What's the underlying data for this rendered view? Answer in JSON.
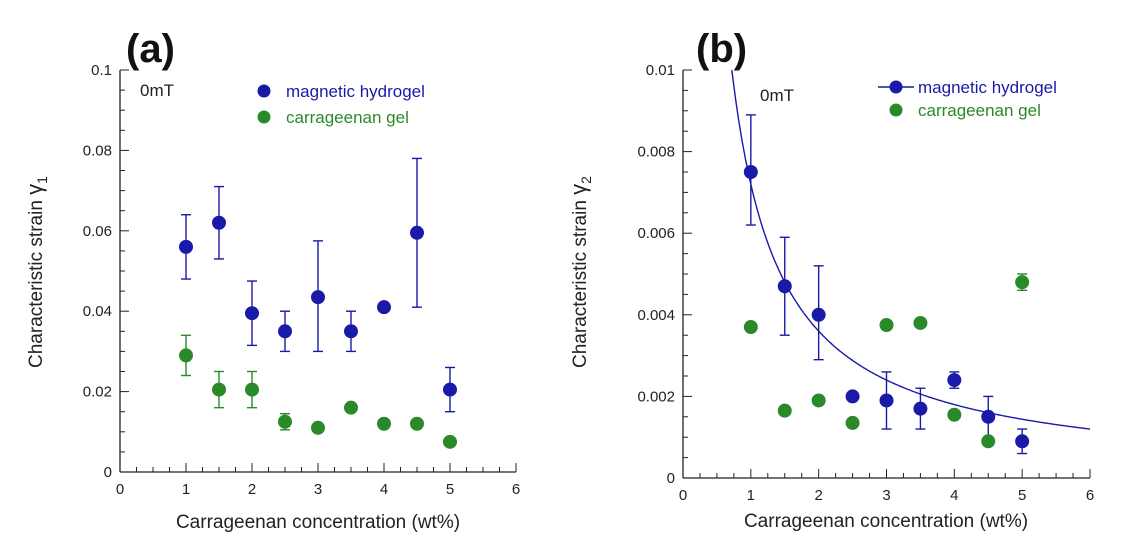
{
  "chart_data": [
    {
      "type": "scatter",
      "panel_label": "(a)",
      "annotation": "0mT",
      "xlabel": "Carrageenan concentration (wt%)",
      "ylabel_main": "Characteristic strain ",
      "ylabel_symbol": "γ",
      "ylabel_sub": "1",
      "xlim": [
        0,
        6
      ],
      "ylim": [
        0,
        0.1
      ],
      "xticks": [
        0,
        1,
        2,
        3,
        4,
        5,
        6
      ],
      "xtick_labels": [
        "0",
        "1",
        "2",
        "3",
        "4",
        "5",
        "6"
      ],
      "yticks": [
        0,
        0.02,
        0.04,
        0.06,
        0.08,
        0.1
      ],
      "ytick_labels": [
        "0",
        "0.02",
        "0.04",
        "0.06",
        "0.08",
        "0.1"
      ],
      "legend_position": "top-right",
      "series": [
        {
          "name": "magnetic hydrogel",
          "color": "#1a1aa8",
          "fit_line": false,
          "x": [
            1,
            1.5,
            2,
            2.5,
            3,
            3.5,
            4,
            4.5,
            5
          ],
          "y": [
            0.056,
            0.062,
            0.0395,
            0.035,
            0.0435,
            0.035,
            0.041,
            0.0595,
            0.0205
          ],
          "err_low": [
            0.008,
            0.009,
            0.008,
            0.005,
            0.0135,
            0.005,
            0,
            0.0185,
            0.0055
          ],
          "err_high": [
            0.008,
            0.009,
            0.008,
            0.005,
            0.014,
            0.005,
            0,
            0.0185,
            0.0055
          ]
        },
        {
          "name": "carrageenan gel",
          "color": "#2a8a2a",
          "fit_line": false,
          "x": [
            1,
            1.5,
            2,
            2.5,
            3,
            3.5,
            4,
            4.5,
            5
          ],
          "y": [
            0.029,
            0.0205,
            0.0205,
            0.0125,
            0.011,
            0.016,
            0.012,
            0.012,
            0.0075
          ],
          "err_low": [
            0.005,
            0.0045,
            0.0045,
            0.002,
            0.001,
            0.001,
            0.001,
            0.001,
            0.001
          ],
          "err_high": [
            0.005,
            0.0045,
            0.0045,
            0.002,
            0.001,
            0.001,
            0.001,
            0.001,
            0.001
          ]
        }
      ]
    },
    {
      "type": "scatter",
      "panel_label": "(b)",
      "annotation": "0mT",
      "xlabel": "Carrageenan concentration (wt%)",
      "ylabel_main": "Characteristic strain ",
      "ylabel_symbol": "γ",
      "ylabel_sub": "2",
      "xlim": [
        0,
        6
      ],
      "ylim": [
        0,
        0.01
      ],
      "xticks": [
        0,
        1,
        2,
        3,
        4,
        5,
        6
      ],
      "xtick_labels": [
        "0",
        "1",
        "2",
        "3",
        "4",
        "5",
        "6"
      ],
      "yticks": [
        0,
        0.002,
        0.004,
        0.006,
        0.008,
        0.01
      ],
      "ytick_labels": [
        "0",
        "0.002",
        "0.004",
        "0.006",
        "0.008",
        "0.01"
      ],
      "legend_position": "top-right",
      "fit": {
        "a": 0.0072,
        "b": -1
      },
      "series": [
        {
          "name": "magnetic hydrogel",
          "color": "#1a1aa8",
          "fit_line": true,
          "x": [
            1,
            1.5,
            2,
            2.5,
            3,
            3.5,
            4,
            4.5,
            5
          ],
          "y": [
            0.0075,
            0.0047,
            0.004,
            0.002,
            0.0019,
            0.0017,
            0.0024,
            0.0015,
            0.0009
          ],
          "err_low": [
            0.0013,
            0.0012,
            0.0011,
            0,
            0.0007,
            0.0005,
            0.0002,
            0.0005,
            0.0003
          ],
          "err_high": [
            0.0014,
            0.0012,
            0.0012,
            0,
            0.0007,
            0.0005,
            0.0002,
            0.0005,
            0.0003
          ]
        },
        {
          "name": "carrageenan gel",
          "color": "#2a8a2a",
          "fit_line": false,
          "x": [
            1,
            1.5,
            2,
            2.5,
            3,
            3.5,
            4,
            4.5,
            5
          ],
          "y": [
            0.0037,
            0.00165,
            0.0019,
            0.00135,
            0.00375,
            0.0038,
            0.00155,
            0.0009,
            0.0048
          ],
          "err_low": [
            0.0001,
            0.0001,
            0.0001,
            0.0001,
            0.0001,
            0.0001,
            0.0001,
            0.0001,
            0.0002
          ],
          "err_high": [
            0.0001,
            0.0001,
            0.0001,
            0.0001,
            0.0001,
            0.0001,
            0.0001,
            0.0001,
            0.0002
          ]
        }
      ]
    }
  ]
}
